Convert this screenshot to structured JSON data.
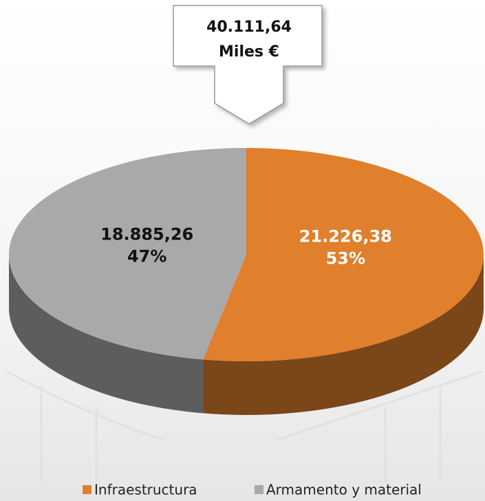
{
  "chart_data": {
    "type": "pie3d",
    "categories": [
      "Infraestructura",
      "Armamento y material"
    ],
    "values": [
      21226.38,
      18885.26
    ],
    "value_labels": [
      "21.226,38",
      "18.885,26"
    ],
    "percent_labels": [
      "53%",
      "47%"
    ],
    "colors": [
      "#e07f2c",
      "#a9a9a9"
    ],
    "total_label": "40.111,64",
    "unit_label": "Miles €"
  }
}
